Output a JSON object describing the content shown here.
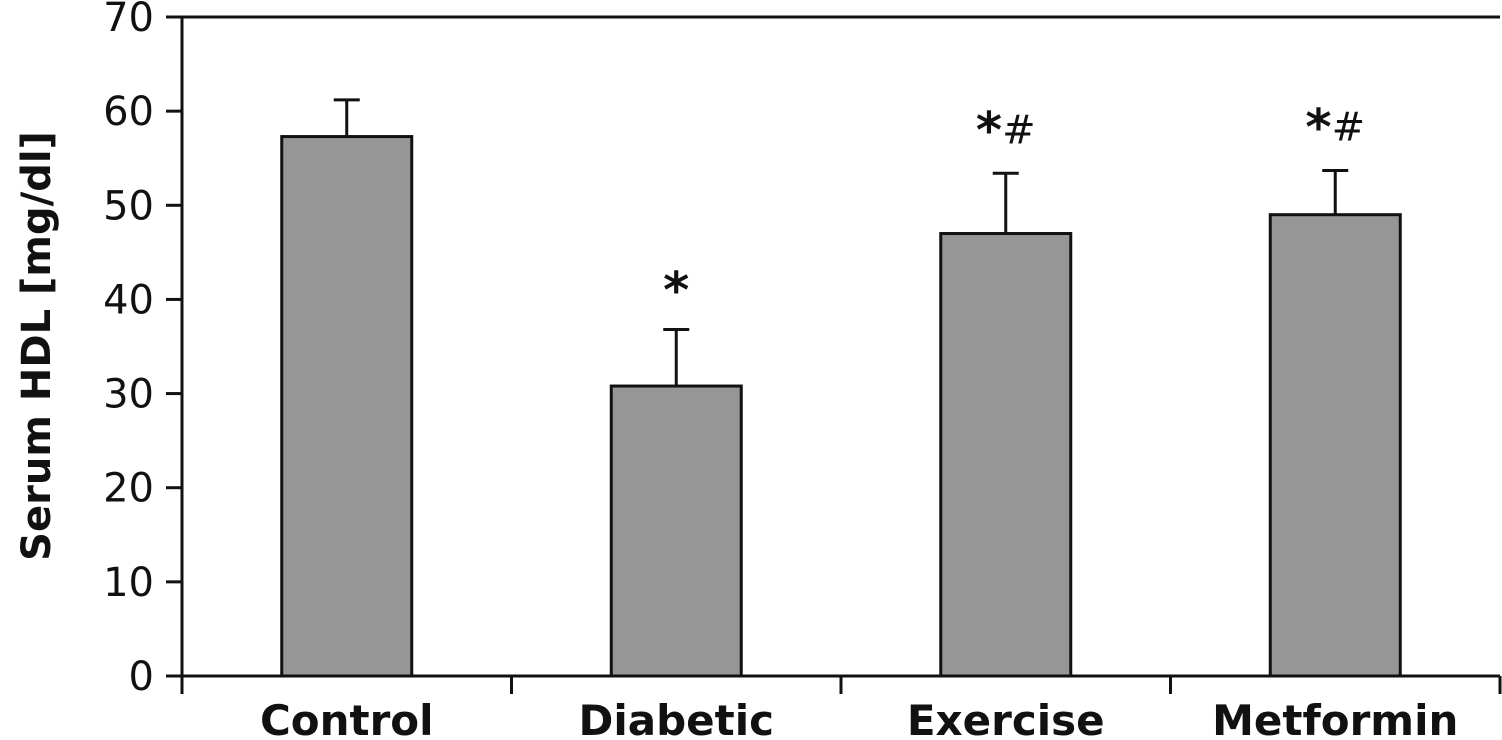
{
  "chart_data": {
    "type": "bar",
    "categories": [
      "Control",
      "Diabetic",
      "Exercise",
      "Metformin"
    ],
    "values": [
      57.3,
      30.8,
      47.0,
      49.0
    ],
    "errors": [
      3.9,
      6.0,
      6.4,
      4.7
    ],
    "significance": [
      {
        "star": "",
        "hash": ""
      },
      {
        "star": "*",
        "hash": ""
      },
      {
        "star": "*",
        "hash": "#"
      },
      {
        "star": "*",
        "hash": "#"
      }
    ],
    "ylabel": "Serum HDL [mg/dl]",
    "xlabel": "",
    "ylim": [
      0,
      70
    ],
    "yticks": [
      0,
      10,
      20,
      30,
      40,
      50,
      60,
      70
    ],
    "grid": false,
    "bar_color": "#969696",
    "edge_color": "#111111"
  }
}
